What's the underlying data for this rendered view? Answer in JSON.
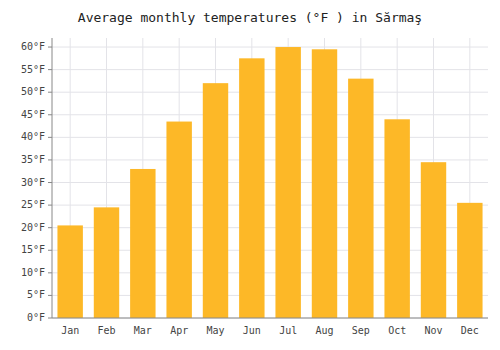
{
  "chart_data": {
    "type": "bar",
    "title": "Average monthly temperatures (°F ) in Sărmaş",
    "categories": [
      "Jan",
      "Feb",
      "Mar",
      "Apr",
      "May",
      "Jun",
      "Jul",
      "Aug",
      "Sep",
      "Oct",
      "Nov",
      "Dec"
    ],
    "values": [
      20.5,
      24.5,
      33,
      43.5,
      52,
      57.5,
      60,
      59.5,
      53,
      44,
      34.5,
      25.5
    ],
    "color": "#FDB827",
    "ylim": [
      0,
      62
    ],
    "yticks": [
      {
        "value": 0,
        "label": "0°F"
      },
      {
        "value": 5,
        "label": "5°F"
      },
      {
        "value": 10,
        "label": "10°F"
      },
      {
        "value": 15,
        "label": "15°F"
      },
      {
        "value": 20,
        "label": "20°F"
      },
      {
        "value": 25,
        "label": "25°F"
      },
      {
        "value": 30,
        "label": "30°F"
      },
      {
        "value": 35,
        "label": "35°F"
      },
      {
        "value": 40,
        "label": "40°F"
      },
      {
        "value": 45,
        "label": "45°F"
      },
      {
        "value": 50,
        "label": "50°F"
      },
      {
        "value": 55,
        "label": "55°F"
      },
      {
        "value": 60,
        "label": "60°F"
      }
    ],
    "grid": true
  }
}
